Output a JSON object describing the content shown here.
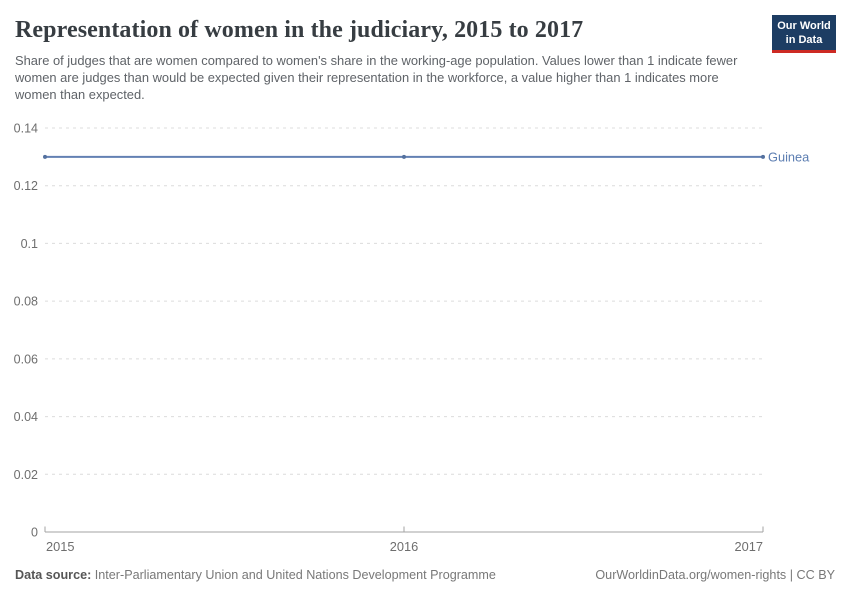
{
  "header": {
    "title": "Representation of women in the judiciary, 2015 to 2017",
    "subtitle": "Share of judges that are women compared to women's share in the working-age population. Values lower than 1 indicate fewer women are judges than would be expected given their representation in the workforce, a value higher than 1 indicates more women than expected.",
    "logo": {
      "line1": "Our World",
      "line2": "in Data",
      "bg_color": "#1d3d63",
      "accent_color": "#cd2a23"
    }
  },
  "chart_data": {
    "type": "line",
    "title": "Representation of women in the judiciary, 2015 to 2017",
    "x": [
      2015,
      2016,
      2017
    ],
    "series": [
      {
        "name": "Guinea",
        "values": [
          0.13,
          0.13,
          0.13
        ],
        "color": "#6380b3",
        "point_color": "#54719f",
        "label_color": "#5b7db1"
      }
    ],
    "ylim": [
      0,
      0.14
    ],
    "yticks": [
      0,
      0.02,
      0.04,
      0.06,
      0.08,
      0.1,
      0.12,
      0.14
    ],
    "xticks": [
      2015,
      2016,
      2017
    ],
    "xlabel": "",
    "ylabel": "",
    "grid": "horizontal-dashed",
    "grid_color": "#dcdcdc",
    "axis_color": "#a3a3a3",
    "tick_label_color": "#6e6e6e",
    "legend_position": "end-of-line"
  },
  "footer": {
    "source_label": "Data source:",
    "source_text": " Inter-Parliamentary Union and United Nations Development Programme",
    "link_text": "OurWorldinData.org/women-rights | CC BY"
  }
}
